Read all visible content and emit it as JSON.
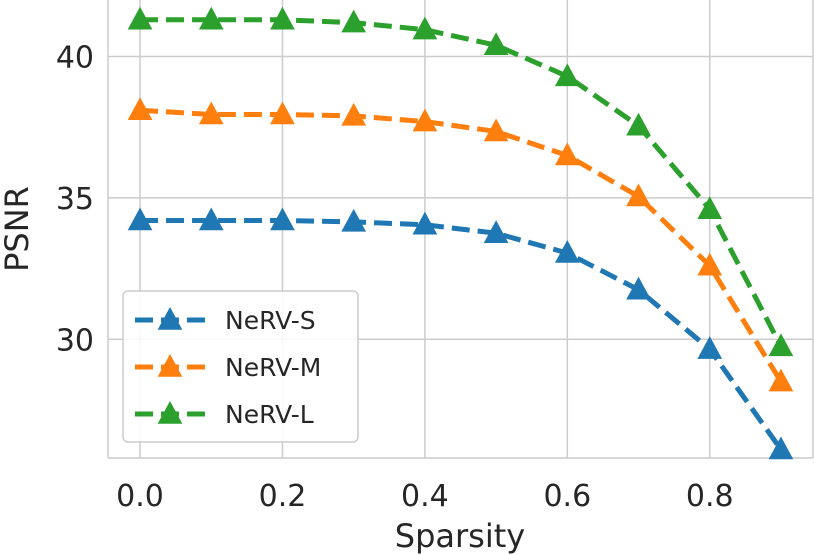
{
  "chart_data": {
    "type": "line",
    "xlabel": "Sparsity",
    "ylabel": "PSNR",
    "xlim": [
      -0.045,
      0.945
    ],
    "ylim": [
      25.8,
      42.0
    ],
    "x": [
      0.0,
      0.1,
      0.2,
      0.3,
      0.4,
      0.5,
      0.6,
      0.7,
      0.8,
      0.9
    ],
    "xticks": [
      "0.0",
      "0.2",
      "0.4",
      "0.6",
      "0.8"
    ],
    "yticks": [
      "30",
      "35",
      "40"
    ],
    "grid": true,
    "legend_position": "lower-left",
    "series": [
      {
        "name": "NeRV-S",
        "color": "#1f77b4",
        "marker": "triangle-up",
        "line_style": "dashed",
        "values": [
          34.2,
          34.2,
          34.2,
          34.15,
          34.05,
          33.75,
          33.05,
          31.75,
          29.65,
          26.1
        ]
      },
      {
        "name": "NeRV-M",
        "color": "#ff7f0e",
        "marker": "triangle-up",
        "line_style": "dashed",
        "values": [
          38.1,
          37.95,
          37.95,
          37.9,
          37.7,
          37.35,
          36.5,
          35.05,
          32.6,
          28.5
        ]
      },
      {
        "name": "NeRV-L",
        "color": "#2ca02c",
        "marker": "triangle-up",
        "line_style": "dashed",
        "values": [
          41.3,
          41.3,
          41.3,
          41.2,
          40.95,
          40.4,
          39.3,
          37.55,
          34.6,
          29.75
        ]
      }
    ]
  }
}
